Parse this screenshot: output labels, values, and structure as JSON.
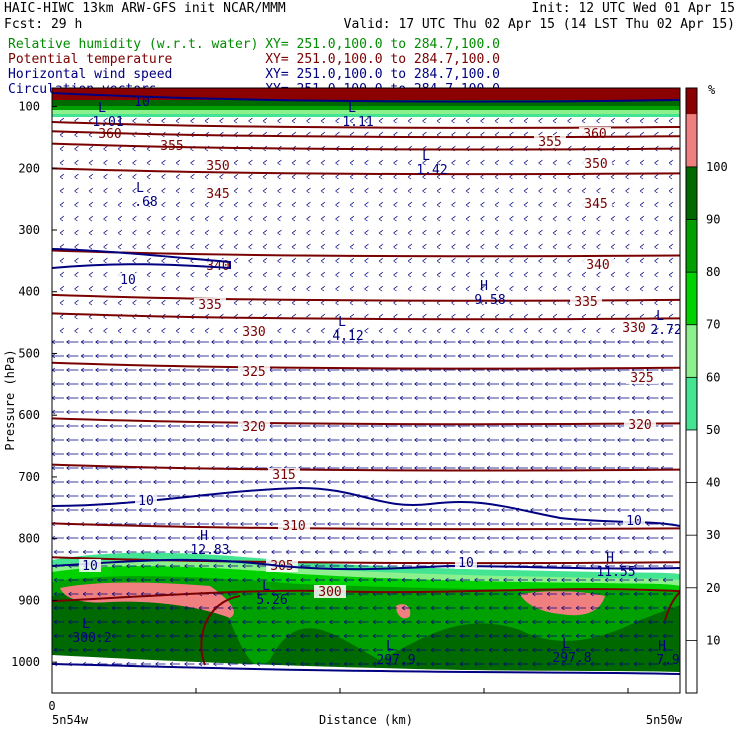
{
  "header": {
    "left_line1": "HAIC-HIWC 13km ARW-GFS init   NCAR/MMM",
    "left_line2": "Fcst:   29 h",
    "right_line1": "Init: 12 UTC Wed 01 Apr 15",
    "right_line2": "Valid: 17 UTC Thu 02 Apr 15 (14 LST Thu 02 Apr 15)"
  },
  "fields": [
    {
      "name": "Relative humidity (w.r.t. water)",
      "xy": "XY= 251.0,100.0 to 284.7,100.0",
      "color": "#008c00"
    },
    {
      "name": "Potential temperature",
      "xy": "XY= 251.0,100.0 to 284.7,100.0",
      "color": "#7a0000"
    },
    {
      "name": "Horizontal wind speed",
      "xy": "XY= 251.0,100.0 to 284.7,100.0",
      "color": "#000080"
    },
    {
      "name": "Circulation vectors",
      "xy": "XY= 251.0,100.0 to 284.7,100.0",
      "color": "#000080"
    }
  ],
  "chart_data": {
    "type": "contour",
    "xlabel": "Distance (km)",
    "ylabel": "Pressure (hPa)",
    "x_tick_zero": "0",
    "x_start_label": "5n54w",
    "x_end_label": "5n50w",
    "y_ticks": [
      100,
      200,
      300,
      400,
      500,
      600,
      700,
      800,
      900,
      1000
    ],
    "ylim": [
      1050,
      70
    ],
    "colorbar": {
      "unit": "%",
      "levels": [
        10,
        20,
        30,
        40,
        50,
        60,
        70,
        80,
        90,
        100
      ],
      "colors": [
        "#ffffff",
        "#ffffff",
        "#ffffff",
        "#ffffff",
        "#ffffff",
        "#44e592",
        "#8cf08c",
        "#00d200",
        "#00a000",
        "#006a00",
        "#f08080",
        "#8b0000"
      ]
    },
    "theta_contours": [
      {
        "value": 360,
        "pressure": 130,
        "labels": [
          "360",
          "360"
        ]
      },
      {
        "value": 355,
        "pressure": 145,
        "labels": [
          "355",
          "355"
        ]
      },
      {
        "value": 350,
        "pressure": 165,
        "labels": [
          "350",
          "350"
        ]
      },
      {
        "value": 345,
        "pressure": 205,
        "labels": [
          "345",
          "345"
        ]
      },
      {
        "value": 340,
        "pressure": 338,
        "labels": [
          "340",
          "340"
        ]
      },
      {
        "value": 335,
        "pressure": 410,
        "labels": [
          "335",
          "335"
        ]
      },
      {
        "value": 330,
        "pressure": 440,
        "labels": [
          "330",
          "330"
        ]
      },
      {
        "value": 325,
        "pressure": 520,
        "labels": [
          "325",
          "325"
        ]
      },
      {
        "value": 320,
        "pressure": 610,
        "labels": [
          "320",
          "320"
        ]
      },
      {
        "value": 315,
        "pressure": 685,
        "labels": [
          "315"
        ]
      },
      {
        "value": 310,
        "pressure": 780,
        "labels": [
          "310"
        ]
      },
      {
        "value": 305,
        "pressure": 835,
        "labels": [
          "305"
        ]
      },
      {
        "value": 300,
        "pressure": 885,
        "labels": [
          "300"
        ]
      }
    ],
    "wind_contours": [
      {
        "value": 10,
        "labels": [
          "10",
          "10",
          "10",
          "10",
          "10"
        ]
      }
    ],
    "extrema": [
      {
        "type": "L",
        "value": "1.01"
      },
      {
        "type": "L",
        "value": "1.11"
      },
      {
        "type": "L",
        "value": "1.42"
      },
      {
        "type": "L",
        "value": ".68"
      },
      {
        "type": "H",
        "value": "9.58"
      },
      {
        "type": "L",
        "value": "4.12"
      },
      {
        "type": "L",
        "value": "2.72"
      },
      {
        "type": "H",
        "value": "12.83"
      },
      {
        "type": "L",
        "value": "5.26"
      },
      {
        "type": "H",
        "value": "11.55"
      },
      {
        "type": "L",
        "value": "300.2"
      },
      {
        "type": "L",
        "value": "297.9"
      },
      {
        "type": "L",
        "value": "297.8"
      },
      {
        "type": "H",
        "value": "7.9"
      }
    ],
    "stray_labels": [
      "10"
    ],
    "wind_vectors": "easterly (leftward) arrows throughout the cross-section"
  }
}
